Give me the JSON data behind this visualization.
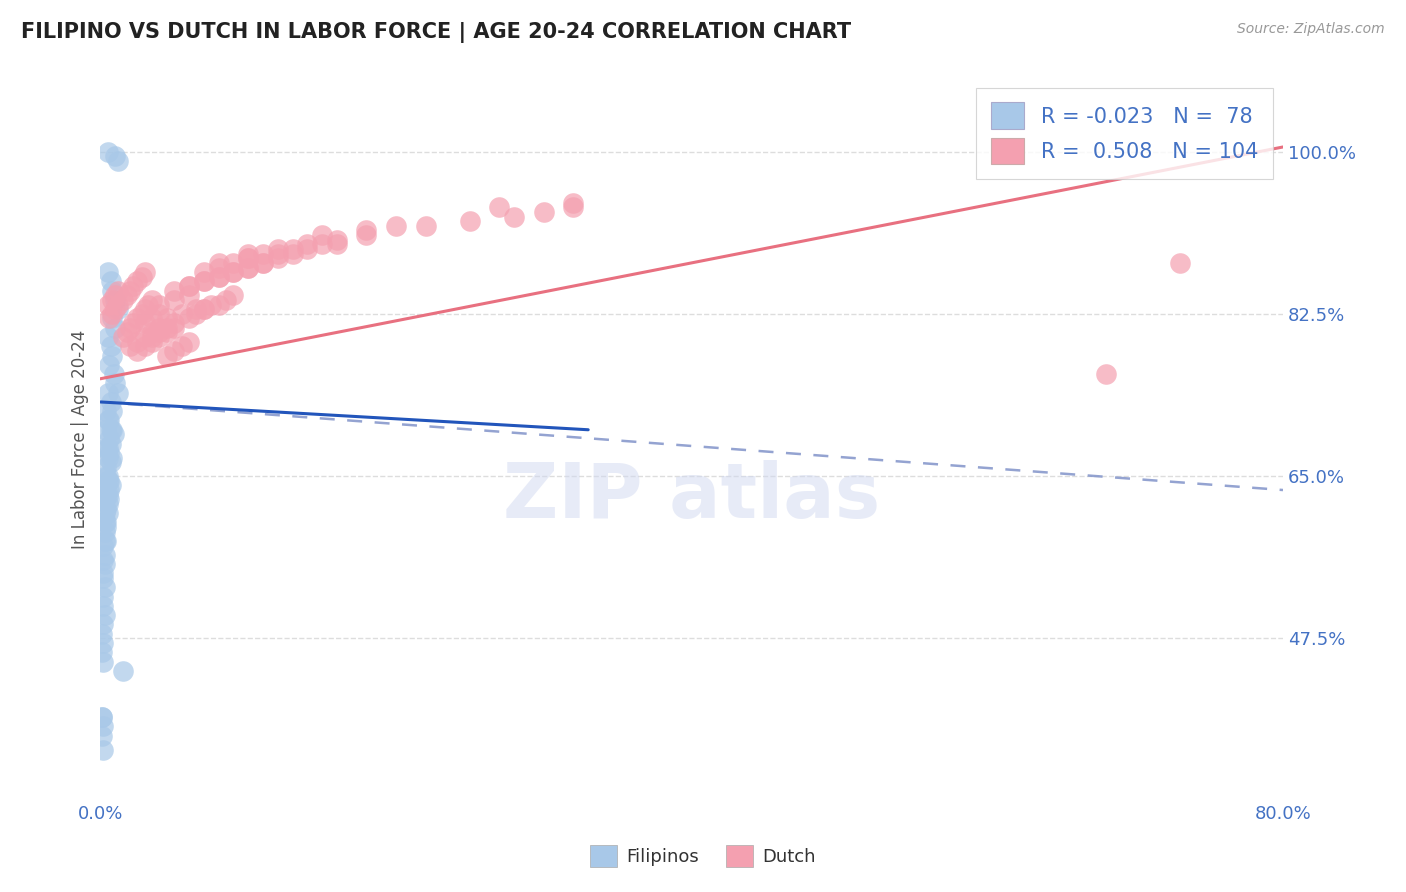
{
  "title": "FILIPINO VS DUTCH IN LABOR FORCE | AGE 20-24 CORRELATION CHART",
  "source_text": "Source: ZipAtlas.com",
  "ylabel": "In Labor Force | Age 20-24",
  "xlim": [
    0.0,
    0.8
  ],
  "ylim": [
    0.3,
    1.08
  ],
  "xtick_positions": [
    0.0,
    0.8
  ],
  "xticklabels": [
    "0.0%",
    "80.0%"
  ],
  "ytick_positions": [
    0.475,
    0.65,
    0.825,
    1.0
  ],
  "ytick_labels": [
    "47.5%",
    "65.0%",
    "82.5%",
    "100.0%"
  ],
  "filipino_R": -0.023,
  "filipino_N": 78,
  "dutch_R": 0.508,
  "dutch_N": 104,
  "filipino_color": "#a8c8e8",
  "dutch_color": "#f4a0b0",
  "filipino_line_color": "#2255bb",
  "dutch_line_color": "#e87080",
  "dashed_line_color": "#8899cc",
  "background_color": "#ffffff",
  "label_color": "#4472c4",
  "grid_color": "#dddddd",
  "filipino_line_x": [
    0.0,
    0.33
  ],
  "filipino_line_y": [
    0.73,
    0.7
  ],
  "dutch_line_x": [
    0.0,
    0.8
  ],
  "dutch_line_y": [
    0.755,
    1.005
  ],
  "dashed_line_x": [
    0.0,
    0.8
  ],
  "dashed_line_y": [
    0.73,
    0.635
  ],
  "filipinos_scatter_x": [
    0.005,
    0.01,
    0.012,
    0.005,
    0.007,
    0.008,
    0.01,
    0.012,
    0.008,
    0.01,
    0.005,
    0.007,
    0.008,
    0.006,
    0.009,
    0.01,
    0.012,
    0.005,
    0.007,
    0.008,
    0.004,
    0.006,
    0.007,
    0.005,
    0.008,
    0.009,
    0.004,
    0.006,
    0.007,
    0.005,
    0.006,
    0.008,
    0.004,
    0.005,
    0.007,
    0.004,
    0.005,
    0.006,
    0.007,
    0.004,
    0.005,
    0.006,
    0.004,
    0.005,
    0.006,
    0.004,
    0.005,
    0.003,
    0.004,
    0.005,
    0.003,
    0.004,
    0.003,
    0.004,
    0.003,
    0.004,
    0.003,
    0.002,
    0.003,
    0.002,
    0.003,
    0.002,
    0.002,
    0.003,
    0.002,
    0.002,
    0.003,
    0.002,
    0.001,
    0.002,
    0.001,
    0.002,
    0.015,
    0.001,
    0.001,
    0.002,
    0.001,
    0.002
  ],
  "filipinos_scatter_y": [
    1.0,
    0.995,
    0.99,
    0.87,
    0.86,
    0.85,
    0.84,
    0.83,
    0.82,
    0.81,
    0.8,
    0.79,
    0.78,
    0.77,
    0.76,
    0.75,
    0.74,
    0.74,
    0.73,
    0.72,
    0.72,
    0.71,
    0.7,
    0.71,
    0.7,
    0.695,
    0.7,
    0.69,
    0.685,
    0.68,
    0.675,
    0.67,
    0.68,
    0.67,
    0.665,
    0.66,
    0.65,
    0.645,
    0.64,
    0.65,
    0.645,
    0.635,
    0.64,
    0.63,
    0.625,
    0.63,
    0.62,
    0.625,
    0.615,
    0.61,
    0.61,
    0.6,
    0.6,
    0.595,
    0.59,
    0.58,
    0.58,
    0.575,
    0.565,
    0.56,
    0.555,
    0.545,
    0.54,
    0.53,
    0.52,
    0.51,
    0.5,
    0.49,
    0.48,
    0.47,
    0.46,
    0.45,
    0.44,
    0.39,
    0.39,
    0.38,
    0.37,
    0.355
  ],
  "dutch_scatter_x": [
    0.005,
    0.008,
    0.01,
    0.012,
    0.006,
    0.008,
    0.01,
    0.012,
    0.015,
    0.018,
    0.02,
    0.022,
    0.025,
    0.028,
    0.03,
    0.015,
    0.018,
    0.02,
    0.022,
    0.025,
    0.028,
    0.03,
    0.032,
    0.035,
    0.02,
    0.025,
    0.03,
    0.035,
    0.04,
    0.025,
    0.03,
    0.035,
    0.04,
    0.045,
    0.05,
    0.03,
    0.035,
    0.04,
    0.045,
    0.05,
    0.055,
    0.06,
    0.035,
    0.04,
    0.045,
    0.05,
    0.06,
    0.065,
    0.07,
    0.04,
    0.05,
    0.06,
    0.07,
    0.08,
    0.045,
    0.055,
    0.065,
    0.075,
    0.085,
    0.09,
    0.05,
    0.06,
    0.07,
    0.08,
    0.09,
    0.1,
    0.11,
    0.06,
    0.07,
    0.08,
    0.09,
    0.1,
    0.11,
    0.12,
    0.13,
    0.07,
    0.08,
    0.09,
    0.1,
    0.11,
    0.13,
    0.15,
    0.08,
    0.1,
    0.12,
    0.14,
    0.16,
    0.1,
    0.12,
    0.14,
    0.16,
    0.18,
    0.2,
    0.15,
    0.18,
    0.22,
    0.25,
    0.28,
    0.3,
    0.32,
    0.27,
    0.32,
    0.73,
    0.68
  ],
  "dutch_scatter_y": [
    0.835,
    0.84,
    0.845,
    0.85,
    0.82,
    0.825,
    0.83,
    0.835,
    0.84,
    0.845,
    0.85,
    0.855,
    0.86,
    0.865,
    0.87,
    0.8,
    0.805,
    0.81,
    0.815,
    0.82,
    0.825,
    0.83,
    0.835,
    0.84,
    0.79,
    0.795,
    0.8,
    0.805,
    0.81,
    0.785,
    0.79,
    0.795,
    0.8,
    0.805,
    0.81,
    0.815,
    0.82,
    0.825,
    0.78,
    0.785,
    0.79,
    0.795,
    0.8,
    0.805,
    0.81,
    0.815,
    0.82,
    0.825,
    0.83,
    0.835,
    0.84,
    0.845,
    0.83,
    0.835,
    0.82,
    0.825,
    0.83,
    0.835,
    0.84,
    0.845,
    0.85,
    0.855,
    0.86,
    0.865,
    0.87,
    0.875,
    0.88,
    0.855,
    0.86,
    0.865,
    0.87,
    0.875,
    0.88,
    0.885,
    0.89,
    0.87,
    0.875,
    0.88,
    0.885,
    0.89,
    0.895,
    0.9,
    0.88,
    0.885,
    0.89,
    0.895,
    0.9,
    0.89,
    0.895,
    0.9,
    0.905,
    0.91,
    0.92,
    0.91,
    0.915,
    0.92,
    0.925,
    0.93,
    0.935,
    0.94,
    0.94,
    0.945,
    0.88,
    0.76
  ]
}
